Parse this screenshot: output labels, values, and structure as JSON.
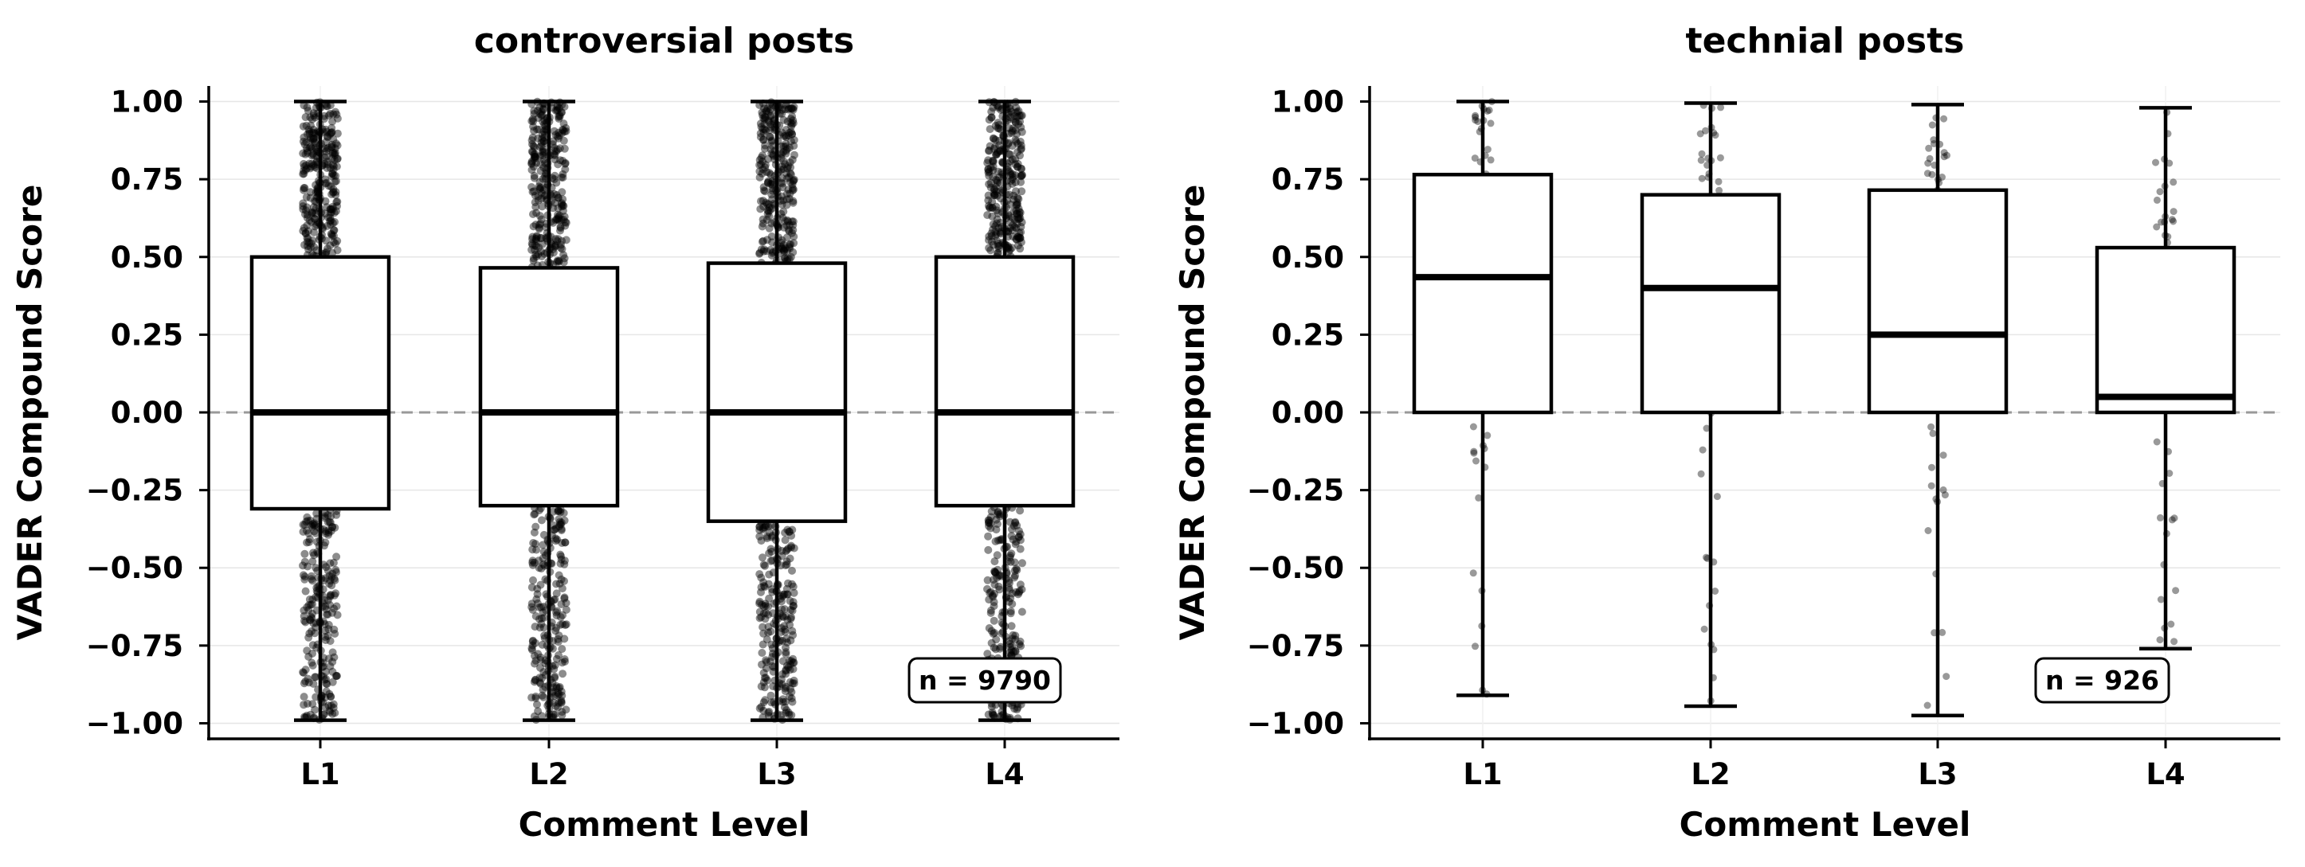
{
  "chart_data": [
    {
      "type": "box",
      "title": "controversial posts",
      "xlabel": "Comment Level",
      "ylabel": "VADER Compound Score",
      "categories": [
        "L1",
        "L2",
        "L3",
        "L4"
      ],
      "ylim": [
        -1.05,
        1.05
      ],
      "yticks": [
        -1.0,
        -0.75,
        -0.5,
        -0.25,
        0.0,
        0.25,
        0.5,
        0.75,
        1.0
      ],
      "ytick_labels": [
        "−1.00",
        "−0.75",
        "−0.50",
        "−0.25",
        "0.00",
        "0.25",
        "0.50",
        "0.75",
        "1.00"
      ],
      "reference_line": 0.0,
      "grid": true,
      "annotation": "n = 9790",
      "points_density": "dense",
      "boxes": [
        {
          "category": "L1",
          "whislo": -0.99,
          "q1": -0.31,
          "median": 0.0,
          "q3": 0.5,
          "whishi": 1.0
        },
        {
          "category": "L2",
          "whislo": -0.99,
          "q1": -0.3,
          "median": 0.0,
          "q3": 0.465,
          "whishi": 1.0
        },
        {
          "category": "L3",
          "whislo": -0.99,
          "q1": -0.35,
          "median": 0.0,
          "q3": 0.48,
          "whishi": 1.0
        },
        {
          "category": "L4",
          "whislo": -0.99,
          "q1": -0.3,
          "median": 0.0,
          "q3": 0.5,
          "whishi": 1.0
        }
      ]
    },
    {
      "type": "box",
      "title": "technial posts",
      "xlabel": "Comment Level",
      "ylabel": "VADER Compound Score",
      "categories": [
        "L1",
        "L2",
        "L3",
        "L4"
      ],
      "ylim": [
        -1.05,
        1.05
      ],
      "yticks": [
        -1.0,
        -0.75,
        -0.5,
        -0.25,
        0.0,
        0.25,
        0.5,
        0.75,
        1.0
      ],
      "ytick_labels": [
        "−1.00",
        "−0.75",
        "−0.50",
        "−0.25",
        "0.00",
        "0.25",
        "0.50",
        "0.75",
        "1.00"
      ],
      "reference_line": 0.0,
      "grid": true,
      "annotation": "n = 926",
      "points_density": "sparse",
      "boxes": [
        {
          "category": "L1",
          "whislo": -0.91,
          "q1": 0.0,
          "median": 0.435,
          "q3": 0.765,
          "whishi": 1.0
        },
        {
          "category": "L2",
          "whislo": -0.945,
          "q1": 0.0,
          "median": 0.4,
          "q3": 0.7,
          "whishi": 0.995
        },
        {
          "category": "L3",
          "whislo": -0.975,
          "q1": 0.0,
          "median": 0.25,
          "q3": 0.715,
          "whishi": 0.99
        },
        {
          "category": "L4",
          "whislo": -0.76,
          "q1": 0.0,
          "median": 0.05,
          "q3": 0.53,
          "whishi": 0.98
        }
      ]
    }
  ]
}
